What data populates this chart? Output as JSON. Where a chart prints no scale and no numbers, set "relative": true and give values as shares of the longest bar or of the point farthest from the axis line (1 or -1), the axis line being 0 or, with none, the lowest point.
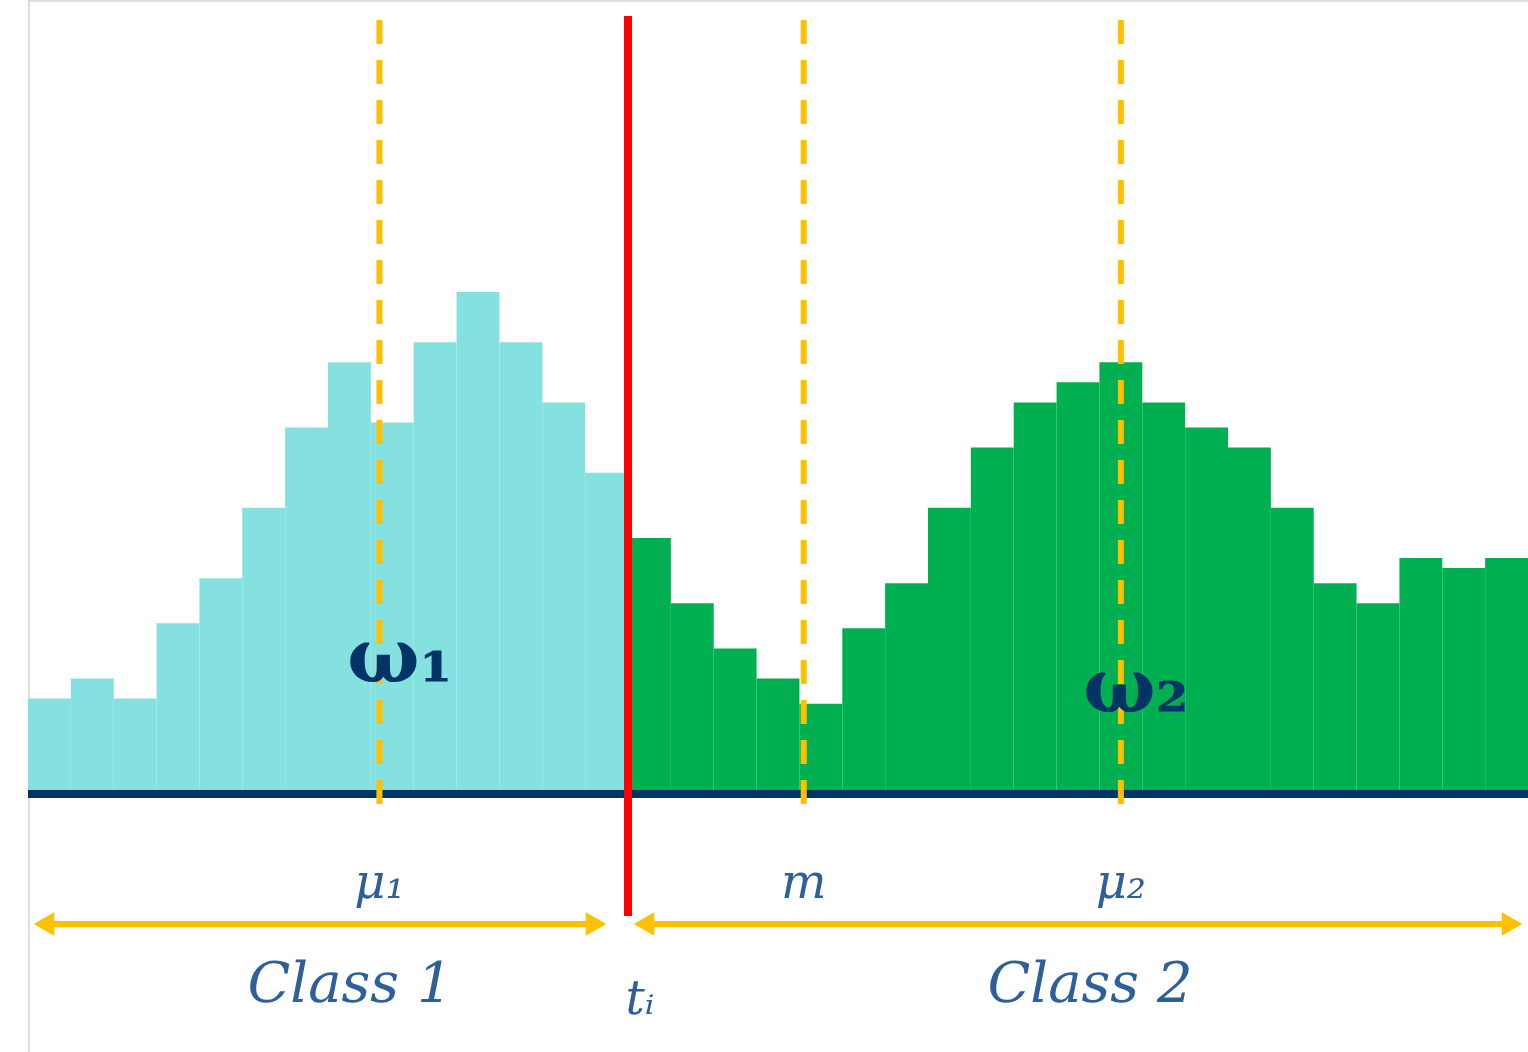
{
  "chart_data": {
    "type": "bar",
    "relative": true,
    "categories": [
      null,
      null,
      null,
      null,
      null,
      null,
      null,
      null,
      null,
      null,
      null,
      null,
      null,
      null,
      null,
      null,
      null,
      null,
      null,
      null,
      null,
      null,
      null,
      null,
      null,
      null,
      null,
      null,
      null,
      null,
      null,
      null,
      null,
      null,
      null
    ],
    "values": [
      0.19,
      0.23,
      0.19,
      0.34,
      0.43,
      0.57,
      0.73,
      0.86,
      0.74,
      0.9,
      1.0,
      0.9,
      0.78,
      0.64,
      0.51,
      0.38,
      0.29,
      0.23,
      0.18,
      0.33,
      0.42,
      0.57,
      0.69,
      0.78,
      0.82,
      0.86,
      0.78,
      0.73,
      0.69,
      0.57,
      0.42,
      0.38,
      0.47,
      0.45,
      0.47
    ],
    "colors": [
      "#85e0e0",
      "#85e0e0",
      "#85e0e0",
      "#85e0e0",
      "#85e0e0",
      "#85e0e0",
      "#85e0e0",
      "#85e0e0",
      "#85e0e0",
      "#85e0e0",
      "#85e0e0",
      "#85e0e0",
      "#85e0e0",
      "#85e0e0",
      "#00b050",
      "#00b050",
      "#00b050",
      "#00b050",
      "#00b050",
      "#00b050",
      "#00b050",
      "#00b050",
      "#00b050",
      "#00b050",
      "#00b050",
      "#00b050",
      "#00b050",
      "#00b050",
      "#00b050",
      "#00b050",
      "#00b050",
      "#00b050",
      "#00b050",
      "#00b050",
      "#00b050"
    ],
    "ref_lines": [
      {
        "axis": "x",
        "label": "μ₁",
        "color": "#ffc000",
        "line_style": "dashed"
      },
      {
        "axis": "x",
        "label": "tᵢ",
        "color": "#ff0000",
        "line_style": "solid"
      },
      {
        "axis": "x",
        "label": "m",
        "color": "#ffc000",
        "line_style": "dashed"
      },
      {
        "axis": "x",
        "label": "μ₂",
        "color": "#ffc000",
        "line_style": "dashed"
      }
    ],
    "annotations": [
      "ω₁",
      "ω₂",
      "Class 1",
      "Class 2"
    ]
  }
}
